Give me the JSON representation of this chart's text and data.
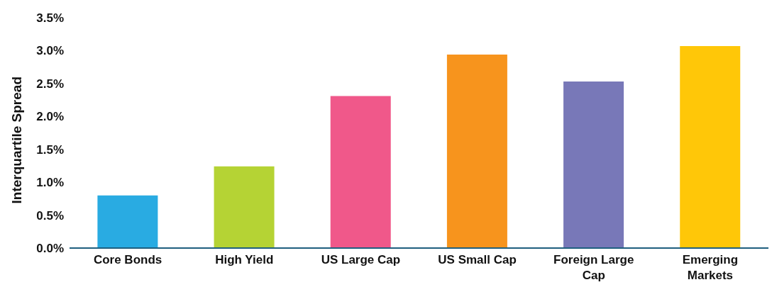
{
  "chart_data": {
    "type": "bar",
    "ylabel": "Interquartile Spread",
    "categories": [
      "Core Bonds",
      "High Yield",
      "US Large Cap",
      "US Small Cap",
      "Foreign Large Cap",
      "Emerging Markets"
    ],
    "values": [
      0.8,
      1.24,
      2.31,
      2.94,
      2.53,
      3.07
    ],
    "colors": [
      "#29abe2",
      "#b5d334",
      "#f0588a",
      "#f7941d",
      "#7878b8",
      "#ffc708"
    ],
    "ylim": [
      0,
      3.5
    ],
    "yticks": [
      {
        "value": 0,
        "label": "0.0%"
      },
      {
        "value": 0.5,
        "label": "0.5%"
      },
      {
        "value": 1,
        "label": "1.0%"
      },
      {
        "value": 1.5,
        "label": "1.5%"
      },
      {
        "value": 2,
        "label": "2.0%"
      },
      {
        "value": 2.5,
        "label": "2.5%"
      },
      {
        "value": 3,
        "label": "3.0%"
      },
      {
        "value": 3.5,
        "label": "3.5%"
      }
    ],
    "grid": false
  }
}
